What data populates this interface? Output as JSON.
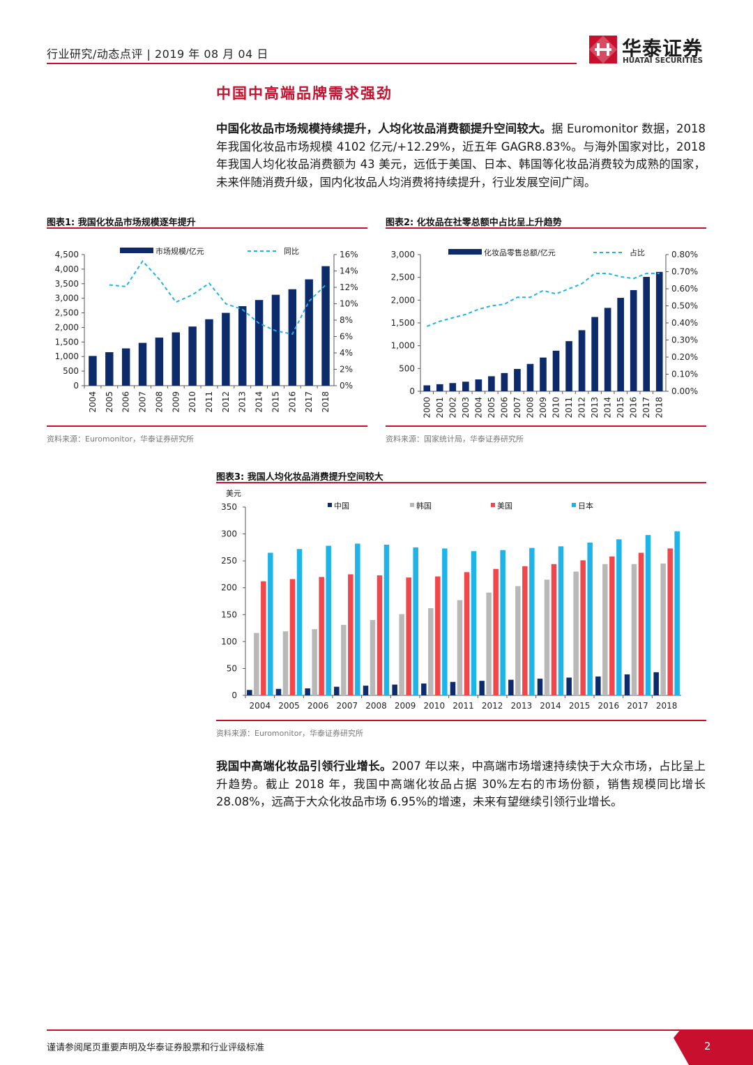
{
  "header": {
    "text": "行业研究/动态点评 | 2019 年 08 月 04 日",
    "logo_cn": "华泰证券",
    "logo_en": "HUATAI SECURITIES"
  },
  "section_title": "中国中高端品牌需求强劲",
  "para1": {
    "bold": "中国化妆品市场规模持续提升，人均化妆品消费额提升空间较大。",
    "rest": "据 Euromonitor 数据，2018 年我国化妆品市场规模 4102 亿元/+12.29%，近五年 GAGR8.83%。与海外国家对比，2018 年我国人均化妆品消费额为 43 美元，远低于美国、日本、韩国等化妆品消费较为成熟的国家，未来伴随消费升级，国内化妆品人均消费将持续提升，行业发展空间广阔。"
  },
  "para2": {
    "bold": "我国中高端化妆品引领行业增长。",
    "rest": "2007 年以来，中高端市场增速持续快于大众市场，占比呈上升趋势。截止 2018 年，我国中高端化妆品占据 30%左右的市场份额，销售规模同比增长 28.08%，远高于大众化妆品市场 6.95%的增速，未来有望继续引领行业增长。"
  },
  "fig1": {
    "title": "图表1:  我国化妆品市场规模逐年提升",
    "source": "资料来源：Euromonitor，华泰证券研究所"
  },
  "fig2": {
    "title": "图表2:  化妆品在社零总额中占比呈上升趋势",
    "source": "资料来源：国家统计局，华泰证券研究所"
  },
  "fig3": {
    "title": "图表3:  我国人均化妆品消费提升空间较大",
    "source": "资料来源：Euromonitor，华泰证券研究所"
  },
  "footer": {
    "text": "谨请参阅尾页重要声明及华泰证券股票和行业评级标准",
    "page": "2"
  },
  "colors": {
    "accent": "#c8102e",
    "navy": "#0d2a6b",
    "cyan": "#1fb4e8",
    "gray": "#b8b8b8",
    "red": "#f0474c"
  },
  "chart_data": [
    {
      "type": "bar",
      "categories": [
        "2004",
        "2005",
        "2006",
        "2007",
        "2008",
        "2009",
        "2010",
        "2011",
        "2012",
        "2013",
        "2014",
        "2015",
        "2016",
        "2017",
        "2018"
      ],
      "series": [
        {
          "name": "市场规模/亿元",
          "type": "bar",
          "axis": "left",
          "values": [
            1020,
            1150,
            1280,
            1470,
            1650,
            1830,
            2030,
            2280,
            2500,
            2730,
            2940,
            3120,
            3310,
            3650,
            4102
          ]
        },
        {
          "name": "同比",
          "type": "line",
          "axis": "right",
          "values": [
            null,
            12.3,
            12.1,
            15.2,
            13.0,
            10.2,
            11.1,
            12.5,
            10.0,
            9.3,
            7.6,
            6.7,
            6.3,
            10.3,
            12.3
          ]
        }
      ],
      "ylim": [
        0,
        4500
      ],
      "yticks": [
        "0",
        "500",
        "1,000",
        "1,500",
        "2,000",
        "2,500",
        "3,000",
        "3,500",
        "4,000",
        "4,500"
      ],
      "y2lim": [
        0,
        16
      ],
      "y2ticks": [
        "0%",
        "2%",
        "4%",
        "6%",
        "8%",
        "10%",
        "12%",
        "14%",
        "16%"
      ],
      "legend": "top"
    },
    {
      "type": "bar",
      "categories": [
        "2000",
        "2001",
        "2002",
        "2003",
        "2004",
        "2005",
        "2006",
        "2007",
        "2008",
        "2009",
        "2010",
        "2011",
        "2012",
        "2013",
        "2014",
        "2015",
        "2016",
        "2017",
        "2018"
      ],
      "series": [
        {
          "name": "化妆品零售总额/亿元",
          "type": "bar",
          "axis": "left",
          "values": [
            130,
            155,
            180,
            210,
            260,
            330,
            400,
            490,
            600,
            740,
            890,
            1100,
            1340,
            1630,
            1830,
            2050,
            2220,
            2510,
            2620
          ]
        },
        {
          "name": "占比",
          "type": "line",
          "axis": "right",
          "values": [
            0.38,
            0.41,
            0.43,
            0.45,
            0.48,
            0.5,
            0.51,
            0.55,
            0.55,
            0.59,
            0.57,
            0.6,
            0.63,
            0.69,
            0.69,
            0.67,
            0.66,
            0.69,
            0.69
          ]
        }
      ],
      "ylim": [
        0,
        3000
      ],
      "yticks": [
        "0",
        "500",
        "1,000",
        "1,500",
        "2,000",
        "2,500",
        "3,000"
      ],
      "y2lim": [
        0,
        0.8
      ],
      "y2ticks": [
        "0.00%",
        "0.10%",
        "0.20%",
        "0.30%",
        "0.40%",
        "0.50%",
        "0.60%",
        "0.70%",
        "0.80%"
      ],
      "legend": "top"
    },
    {
      "type": "bar",
      "ylabel": "美元",
      "categories": [
        "2004",
        "2005",
        "2006",
        "2007",
        "2008",
        "2009",
        "2010",
        "2011",
        "2012",
        "2013",
        "2014",
        "2015",
        "2016",
        "2017",
        "2018"
      ],
      "series": [
        {
          "name": "中国",
          "values": [
            10,
            12,
            13,
            16,
            18,
            20,
            22,
            25,
            27,
            29,
            31,
            33,
            35,
            39,
            43
          ]
        },
        {
          "name": "韩国",
          "values": [
            116,
            119,
            123,
            131,
            140,
            151,
            162,
            177,
            191,
            203,
            215,
            230,
            244,
            244,
            245
          ]
        },
        {
          "name": "美国",
          "values": [
            212,
            216,
            220,
            225,
            223,
            219,
            221,
            229,
            235,
            240,
            244,
            251,
            258,
            265,
            273
          ]
        },
        {
          "name": "日本",
          "values": [
            265,
            272,
            278,
            282,
            280,
            275,
            273,
            268,
            270,
            274,
            277,
            284,
            290,
            298,
            305
          ]
        }
      ],
      "ylim": [
        0,
        350
      ],
      "yticks": [
        "0",
        "50",
        "100",
        "150",
        "200",
        "250",
        "300",
        "350"
      ],
      "legend": "top"
    }
  ]
}
